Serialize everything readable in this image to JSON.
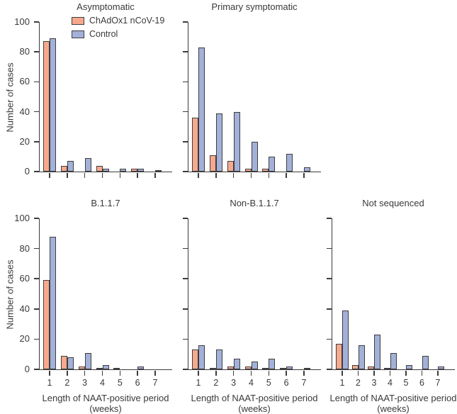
{
  "figure_title": "",
  "colors": {
    "vaccine": "#f7a98e",
    "control": "#a3b1d9",
    "bar_border": "#3e3e3e",
    "axis": "#3c3c3c",
    "text": "#3a3a3a",
    "background": "#ffffff"
  },
  "legend": {
    "position": "top-left panel, inside plot near top",
    "items": [
      {
        "label": "ChAdOx1 nCoV-19",
        "color_key": "vaccine"
      },
      {
        "label": "Control",
        "color_key": "control"
      }
    ]
  },
  "axes": {
    "ylabel": "Number of cases",
    "xlabel_line1": "Length of NAAT-positive period",
    "xlabel_line2": "(weeks)",
    "yticks": [
      0,
      20,
      40,
      60,
      80,
      100
    ],
    "ylim": [
      0,
      100
    ],
    "weeks": [
      "1",
      "2",
      "3",
      "4",
      "5",
      "6",
      "7"
    ],
    "grid": "off"
  },
  "chart_data": [
    {
      "type": "bar",
      "title": "Asymptomatic",
      "categories": [
        "1",
        "2",
        "3",
        "4",
        "5",
        "6",
        "7"
      ],
      "ylim": [
        0,
        100
      ],
      "show_y_labels": true,
      "show_x_labels": false,
      "show_legend": true,
      "show_ylab": true,
      "show_xlab": false,
      "series": [
        {
          "name": "ChAdOx1 nCoV-19",
          "values": [
            87,
            4,
            0,
            4,
            0,
            2,
            0
          ]
        },
        {
          "name": "Control",
          "values": [
            89,
            7,
            9,
            2,
            2,
            2,
            1
          ]
        }
      ]
    },
    {
      "type": "bar",
      "title": "Primary symptomatic",
      "categories": [
        "1",
        "2",
        "3",
        "4",
        "5",
        "6",
        "7"
      ],
      "ylim": [
        0,
        100
      ],
      "show_y_labels": false,
      "show_x_labels": false,
      "show_legend": false,
      "show_ylab": false,
      "show_xlab": false,
      "series": [
        {
          "name": "ChAdOx1 nCoV-19",
          "values": [
            36,
            11,
            7,
            2,
            2,
            0,
            0
          ]
        },
        {
          "name": "Control",
          "values": [
            83,
            39,
            40,
            20,
            10,
            12,
            3
          ]
        }
      ]
    },
    {
      "type": "bar",
      "title": "B.1.1.7",
      "categories": [
        "1",
        "2",
        "3",
        "4",
        "5",
        "6",
        "7"
      ],
      "ylim": [
        0,
        100
      ],
      "show_y_labels": true,
      "show_x_labels": true,
      "show_legend": false,
      "show_ylab": true,
      "show_xlab": true,
      "series": [
        {
          "name": "ChAdOx1 nCoV-19",
          "values": [
            59,
            9,
            2,
            1,
            1,
            0,
            0
          ]
        },
        {
          "name": "Control",
          "values": [
            88,
            8,
            11,
            3,
            0,
            2,
            0
          ]
        }
      ]
    },
    {
      "type": "bar",
      "title": "Non-B.1.1.7",
      "categories": [
        "1",
        "2",
        "3",
        "4",
        "5",
        "6",
        "7"
      ],
      "ylim": [
        0,
        100
      ],
      "show_y_labels": false,
      "show_x_labels": true,
      "show_legend": false,
      "show_ylab": false,
      "show_xlab": true,
      "series": [
        {
          "name": "ChAdOx1 nCoV-19",
          "values": [
            13,
            1,
            2,
            2,
            1,
            1,
            0
          ]
        },
        {
          "name": "Control",
          "values": [
            16,
            13,
            7,
            5,
            7,
            2,
            1
          ]
        }
      ]
    },
    {
      "type": "bar",
      "title": "Not sequenced",
      "categories": [
        "1",
        "2",
        "3",
        "4",
        "5",
        "6",
        "7"
      ],
      "ylim": [
        0,
        100
      ],
      "show_y_labels": false,
      "show_x_labels": true,
      "show_legend": false,
      "show_ylab": false,
      "show_xlab": true,
      "series": [
        {
          "name": "ChAdOx1 nCoV-19",
          "values": [
            17,
            3,
            2,
            1,
            0,
            0,
            0
          ]
        },
        {
          "name": "Control",
          "values": [
            39,
            16,
            23,
            11,
            3,
            9,
            2
          ]
        }
      ]
    }
  ]
}
